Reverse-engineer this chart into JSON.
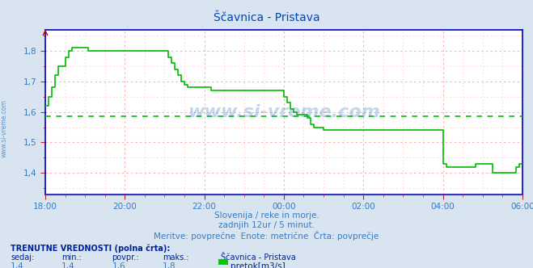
{
  "title": "Ščavnica - Pristava",
  "bg_color": "#d8e4f0",
  "plot_bg_color": "#ffffff",
  "grid_color_major": "#ffaaaa",
  "grid_color_minor": "#ffd0d0",
  "line_color": "#00bb00",
  "avg_line_color": "#00bb00",
  "avg_line_value": 1.585,
  "x_tick_labels": [
    "18:00",
    "20:00",
    "22:00",
    "00:00",
    "02:00",
    "04:00",
    "06:00"
  ],
  "x_tick_positions": [
    0,
    24,
    48,
    72,
    96,
    120,
    144
  ],
  "ylim": [
    1.33,
    1.87
  ],
  "yticks": [
    1.4,
    1.5,
    1.6,
    1.7,
    1.8
  ],
  "ylabel_vals": [
    "1,4",
    "1,5",
    "1,6",
    "1,7",
    "1,8"
  ],
  "subtitle1": "Slovenija / reke in morje.",
  "subtitle2": "zadnjih 12ur / 5 minut.",
  "subtitle3": "Meritve: povprečne  Enote: metrične  Črta: povprečje",
  "footer_title": "TRENUTNE VREDNOSTI (polna črta):",
  "footer_cols": [
    "sedaj:",
    "min.:",
    "povpr.:",
    "maks.:",
    "Ščavnica - Pristava"
  ],
  "footer_vals": [
    "1,4",
    "1,4",
    "1,6",
    "1,8",
    "pretok[m3/s]"
  ],
  "watermark": "www.si-vreme.com",
  "watermark_color": "#3a7abf",
  "title_color": "#0044bb",
  "subtitle_color": "#3a7abf",
  "axis_label_color": "#3a7abf",
  "footer_bold_color": "#002299",
  "spine_color": "#0000cc",
  "bottom_spine_color": "#3333bb",
  "n_points": 145,
  "data_y": [
    1.62,
    1.65,
    1.68,
    1.72,
    1.75,
    1.75,
    1.78,
    1.8,
    1.81,
    1.81,
    1.81,
    1.81,
    1.81,
    1.8,
    1.8,
    1.8,
    1.8,
    1.8,
    1.8,
    1.8,
    1.8,
    1.8,
    1.8,
    1.8,
    1.8,
    1.8,
    1.8,
    1.8,
    1.8,
    1.8,
    1.8,
    1.8,
    1.8,
    1.8,
    1.8,
    1.8,
    1.8,
    1.78,
    1.76,
    1.74,
    1.72,
    1.7,
    1.69,
    1.68,
    1.68,
    1.68,
    1.68,
    1.68,
    1.68,
    1.68,
    1.67,
    1.67,
    1.67,
    1.67,
    1.67,
    1.67,
    1.67,
    1.67,
    1.67,
    1.67,
    1.67,
    1.67,
    1.67,
    1.67,
    1.67,
    1.67,
    1.67,
    1.67,
    1.67,
    1.67,
    1.67,
    1.67,
    1.65,
    1.63,
    1.61,
    1.6,
    1.59,
    1.59,
    1.59,
    1.58,
    1.56,
    1.55,
    1.55,
    1.55,
    1.54,
    1.54,
    1.54,
    1.54,
    1.54,
    1.54,
    1.54,
    1.54,
    1.54,
    1.54,
    1.54,
    1.54,
    1.54,
    1.54,
    1.54,
    1.54,
    1.54,
    1.54,
    1.54,
    1.54,
    1.54,
    1.54,
    1.54,
    1.54,
    1.54,
    1.54,
    1.54,
    1.54,
    1.54,
    1.54,
    1.54,
    1.54,
    1.54,
    1.54,
    1.54,
    1.54,
    1.43,
    1.42,
    1.42,
    1.42,
    1.42,
    1.42,
    1.42,
    1.42,
    1.42,
    1.42,
    1.43,
    1.43,
    1.43,
    1.43,
    1.43,
    1.4,
    1.4,
    1.4,
    1.4,
    1.4,
    1.4,
    1.4,
    1.42,
    1.43,
    1.43
  ]
}
